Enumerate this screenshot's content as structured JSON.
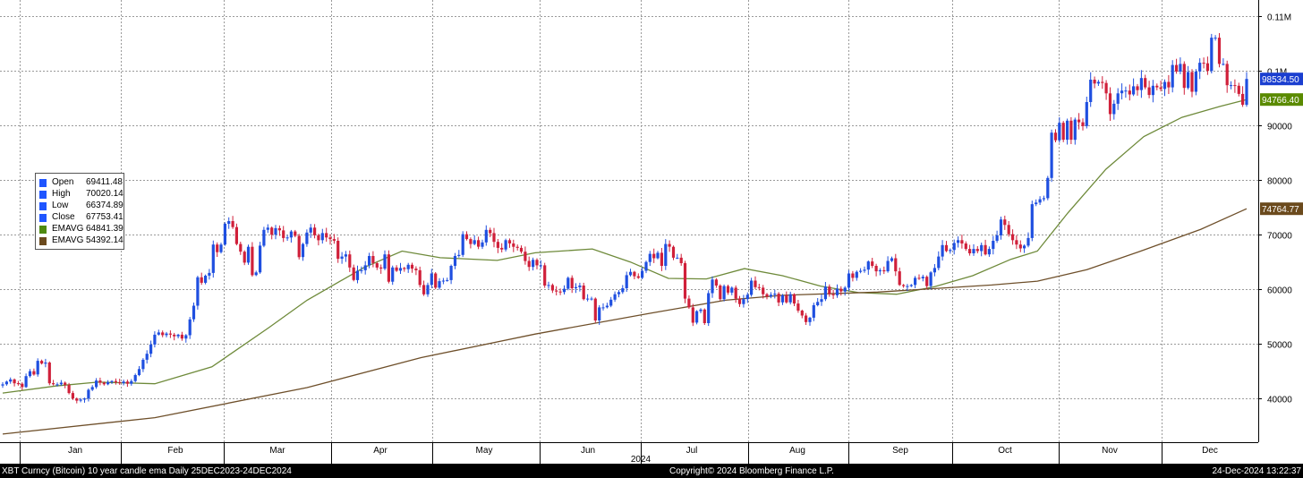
{
  "chart_data": {
    "type": "candlestick",
    "title": "XBT Curncy (Bitcoin) 10 year candle ema",
    "period": "Daily 25DEC2023-24DEC2024",
    "year_label": "2024",
    "x_ticks": [
      "Jan",
      "Feb",
      "Mar",
      "Apr",
      "May",
      "Jun",
      "Jul",
      "Aug",
      "Sep",
      "Oct",
      "Nov",
      "Dec"
    ],
    "y_ticks": [
      "40000",
      "50000",
      "60000",
      "70000",
      "80000",
      "90000",
      "0.1M",
      "0.11M"
    ],
    "ylim": [
      32000,
      113000
    ],
    "grid": true,
    "legend_position": "left-middle",
    "series": [
      {
        "name": "XBT Curncy",
        "kind": "candles",
        "color_up": "#1f4fe0",
        "color_down": "#d0203a",
        "close": [
          42600,
          43100,
          43500,
          42800,
          42700,
          42100,
          44100,
          45000,
          44400,
          46900,
          46400,
          46600,
          42800,
          42600,
          42600,
          42900,
          42500,
          41000,
          40000,
          39600,
          39800,
          40000,
          41600,
          42100,
          43300,
          42900,
          42600,
          43000,
          43200,
          43000,
          42800,
          43100,
          42700,
          43200,
          44300,
          45400,
          47100,
          48200,
          49900,
          51700,
          52100,
          51600,
          51900,
          51700,
          51400,
          51700,
          51000,
          51600,
          54500,
          57000,
          62200,
          61200,
          62500,
          63000,
          68200,
          66800,
          68200,
          72000,
          72500,
          71400,
          68300,
          66900,
          64900,
          67800,
          62600,
          63100,
          68000,
          70900,
          71300,
          70000,
          71200,
          70800,
          69400,
          69500,
          70600,
          69800,
          65900,
          68300,
          70400,
          71300,
          69900,
          69000,
          70300,
          69500,
          69200,
          68900,
          65600,
          66000,
          66400,
          64000,
          61700,
          63400,
          63500,
          64400,
          66100,
          64800,
          64000,
          63800,
          66400,
          61400,
          64000,
          63400,
          63900,
          63700,
          64500,
          63800,
          63500,
          60800,
          59100,
          60800,
          62900,
          60300,
          61500,
          61600,
          61700,
          64300,
          66100,
          66300,
          70100,
          69200,
          68300,
          69000,
          67800,
          68600,
          70900,
          70300,
          68700,
          67600,
          67300,
          69000,
          68400,
          67800,
          67600,
          66900,
          65200,
          64100,
          65400,
          64400,
          64400,
          60700,
          60800,
          59800,
          59600,
          59500,
          60100,
          62100,
          60200,
          60400,
          60700,
          58200,
          58300,
          58300,
          54300,
          56700,
          56700,
          57000,
          58100,
          59100,
          59500,
          60200,
          62600,
          63200,
          62400,
          62100,
          63400,
          65000,
          66500,
          65700,
          66700,
          64300,
          68300,
          67800,
          65800,
          65800,
          64800,
          58300,
          56700,
          53900,
          56000,
          56300,
          53800,
          59300,
          61800,
          60700,
          58200,
          60600,
          59400,
          60300,
          58300,
          57300,
          58200,
          59000,
          61600,
          60400,
          60300,
          59100,
          58700,
          59000,
          59200,
          57600,
          58900,
          57600,
          59100,
          57400,
          56100,
          55200,
          54000,
          54800,
          57100,
          57700,
          58200,
          60500,
          59100,
          58900,
          60100,
          59600,
          60300,
          62900,
          62100,
          63200,
          63400,
          63600,
          65100,
          64300,
          63300,
          63500,
          63300,
          65200,
          65700,
          63300,
          60800,
          60600,
          60600,
          60800,
          62100,
          62000,
          62300,
          60600,
          63100,
          63900,
          66000,
          68100,
          67000,
          67200,
          68500,
          69000,
          68400,
          67400,
          66600,
          67400,
          67000,
          68100,
          66400,
          67400,
          68900,
          69900,
          72800,
          71800,
          70100,
          69000,
          68200,
          67500,
          68000,
          69400,
          75600,
          75900,
          76500,
          76700,
          80400,
          88700,
          87300,
          90500,
          87400,
          90900,
          87400,
          91100,
          90600,
          89900,
          94300,
          98400,
          97700,
          98000,
          97800,
          95900,
          92100,
          94000,
          95900,
          96400,
          96400,
          95700,
          97200,
          96500,
          98700,
          97000,
          95600,
          97300,
          97000,
          96700,
          98000,
          97000,
          101100,
          99900,
          101300,
          96900,
          99800,
          96200,
          99900,
          101500,
          101400,
          100000,
          106100,
          106100,
          101300,
          101300,
          97400,
          97400,
          97300,
          95800,
          93800,
          98534.5
        ]
      },
      {
        "name": "EMAVG",
        "kind": "line",
        "period": "short",
        "color": "#6e8a3a",
        "values": [
          [
            0,
            41000
          ],
          [
            14,
            42300
          ],
          [
            25,
            43000
          ],
          [
            40,
            42700
          ],
          [
            55,
            45800
          ],
          [
            70,
            53000
          ],
          [
            80,
            58000
          ],
          [
            95,
            64000
          ],
          [
            105,
            67000
          ],
          [
            115,
            65800
          ],
          [
            130,
            65300
          ],
          [
            140,
            66700
          ],
          [
            155,
            67400
          ],
          [
            165,
            65000
          ],
          [
            175,
            62000
          ],
          [
            185,
            61900
          ],
          [
            195,
            63800
          ],
          [
            205,
            62500
          ],
          [
            215,
            60600
          ],
          [
            225,
            59400
          ],
          [
            235,
            59100
          ],
          [
            245,
            60500
          ],
          [
            255,
            62500
          ],
          [
            265,
            65500
          ],
          [
            272,
            67000
          ],
          [
            280,
            74000
          ],
          [
            290,
            82000
          ],
          [
            300,
            88000
          ],
          [
            310,
            91500
          ],
          [
            320,
            93500
          ],
          [
            327,
            94766.4
          ]
        ]
      },
      {
        "name": "EMAVG",
        "kind": "line",
        "period": "long",
        "color": "#6e4f2a",
        "values": [
          [
            0,
            33500
          ],
          [
            40,
            36500
          ],
          [
            80,
            42000
          ],
          [
            110,
            47500
          ],
          [
            140,
            51800
          ],
          [
            170,
            55600
          ],
          [
            190,
            58000
          ],
          [
            205,
            58900
          ],
          [
            230,
            59500
          ],
          [
            260,
            60800
          ],
          [
            272,
            61500
          ],
          [
            285,
            63600
          ],
          [
            300,
            67200
          ],
          [
            315,
            71000
          ],
          [
            327,
            74764.77
          ]
        ]
      }
    ]
  },
  "price_labels": [
    {
      "value": 98534.5,
      "text": "98534.50",
      "bg": "#1b3fd0",
      "fg": "#ffffff"
    },
    {
      "value": 94766.4,
      "text": "94766.40",
      "bg": "#5a8a00",
      "fg": "#ffffff"
    },
    {
      "value": 74764.77,
      "text": "74764.77",
      "bg": "#6b4a1d",
      "fg": "#ffffff"
    }
  ],
  "legend": {
    "rows": [
      {
        "name": "Open",
        "value": "69411.48",
        "color": "#1f55ff"
      },
      {
        "name": "High",
        "value": "70020.14",
        "color": "#1f55ff"
      },
      {
        "name": "Low",
        "value": "66374.89",
        "color": "#1f55ff"
      },
      {
        "name": "Close",
        "value": "67753.41",
        "color": "#1f55ff"
      },
      {
        "name": "EMAVG",
        "value": "64841.39",
        "color": "#4f8a10"
      },
      {
        "name": "EMAVG",
        "value": "54392.14",
        "color": "#6b4a1d"
      }
    ]
  },
  "footer": {
    "left": "XBT Curncy (Bitcoin) 10 year candle ema  Daily 25DEC2023-24DEC2024",
    "center": "Copyright© 2024 Bloomberg Finance L.P.",
    "right": "24-Dec-2024 13:22:37"
  }
}
